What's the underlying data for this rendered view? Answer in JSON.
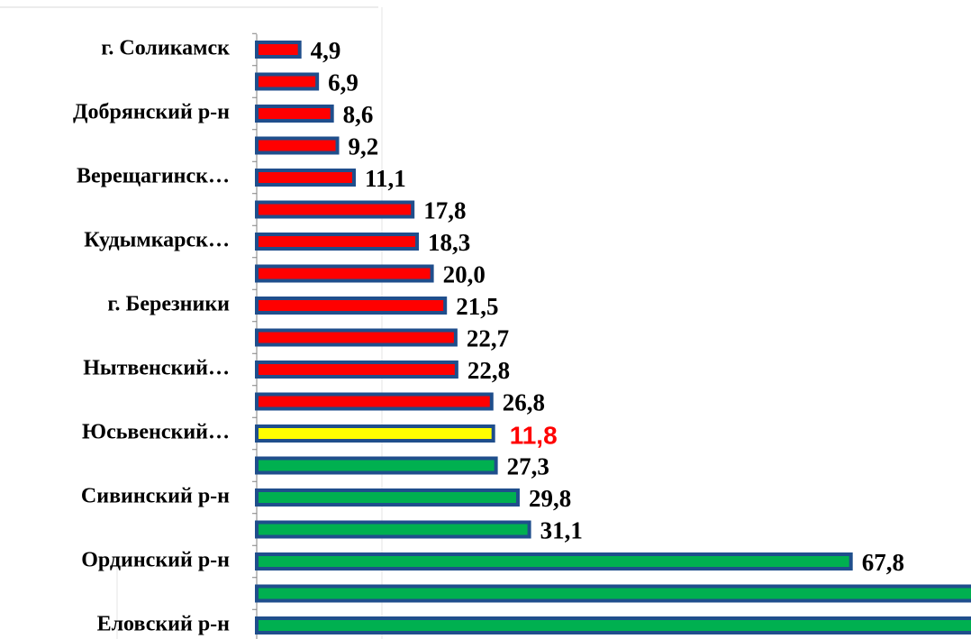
{
  "chart_data": {
    "type": "hbar",
    "categories": [
      "г. Соликамск",
      null,
      "Добрянский р-н",
      null,
      "Верещагинск…",
      null,
      "Кудымкарск…",
      null,
      "г. Березники",
      null,
      "Нытвенский…",
      null,
      "Юсьвенский…",
      null,
      "Сивинский р-н",
      null,
      "Ординский р-н",
      null,
      "Еловский р-н"
    ],
    "values": [
      4.9,
      6.9,
      8.6,
      9.2,
      11.1,
      17.8,
      18.3,
      20.0,
      21.5,
      22.7,
      22.8,
      26.8,
      27.0,
      27.3,
      29.8,
      31.1,
      67.8,
      82,
      82
    ],
    "value_labels": [
      "4,9",
      "6,9",
      "8,6",
      "9,2",
      "11,1",
      "17,8",
      "18,3",
      "20,0",
      "21,5",
      "22,7",
      "22,8",
      "26,8",
      null,
      "27,3",
      "29,8",
      "31,1",
      "67,8",
      null,
      null
    ],
    "colors": [
      "#ff0000",
      "#ff0000",
      "#ff0000",
      "#ff0000",
      "#ff0000",
      "#ff0000",
      "#ff0000",
      "#ff0000",
      "#ff0000",
      "#ff0000",
      "#ff0000",
      "#ff0000",
      "#ffff00",
      "#00b050",
      "#00b050",
      "#00b050",
      "#00b050",
      "#00b050",
      "#00b050"
    ],
    "outline_color": "#1f4e8c",
    "annotation": "11,8",
    "annotation_color": "#ff0000",
    "xlim": [
      0,
      81.5
    ]
  }
}
